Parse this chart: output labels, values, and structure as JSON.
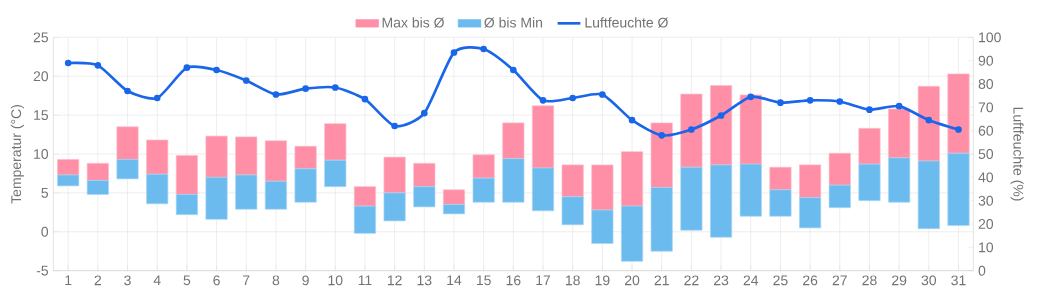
{
  "chart_data": {
    "type": "bar",
    "ylabel": "Temperatur (°C)",
    "y2label": "Luftfeuchte (%)",
    "categories": [
      "1",
      "2",
      "3",
      "4",
      "5",
      "6",
      "7",
      "8",
      "9",
      "10",
      "11",
      "12",
      "13",
      "14",
      "15",
      "16",
      "17",
      "18",
      "19",
      "20",
      "21",
      "22",
      "23",
      "24",
      "25",
      "26",
      "27",
      "28",
      "29",
      "30",
      "31"
    ],
    "series": [
      {
        "name": "Max bis Ø",
        "color": "#fe8fa6",
        "base": [
          7.3,
          6.6,
          9.3,
          7.4,
          4.8,
          7.0,
          7.3,
          6.5,
          8.1,
          9.2,
          3.3,
          5.0,
          5.8,
          3.5,
          6.9,
          9.4,
          8.2,
          4.5,
          2.8,
          3.3,
          5.7,
          8.3,
          8.6,
          8.7,
          5.4,
          4.4,
          6.0,
          8.7,
          9.5,
          9.1,
          10.1
        ],
        "values": [
          2.0,
          2.2,
          4.2,
          4.4,
          5.0,
          5.3,
          4.9,
          5.2,
          2.9,
          4.7,
          2.5,
          4.6,
          3.0,
          1.9,
          3.0,
          4.6,
          8.0,
          4.1,
          5.8,
          7.0,
          8.3,
          9.4,
          10.2,
          8.9,
          2.9,
          4.2,
          4.1,
          4.6,
          6.3,
          9.6,
          10.2
        ]
      },
      {
        "name": "Ø bis Min",
        "color": "#6cbbee",
        "base": [
          5.9,
          4.8,
          6.8,
          3.6,
          2.2,
          1.6,
          2.9,
          2.9,
          3.8,
          5.8,
          -0.2,
          1.4,
          3.2,
          2.3,
          3.8,
          3.8,
          2.7,
          0.9,
          -1.5,
          -3.8,
          -2.5,
          0.2,
          -0.7,
          2.0,
          2.0,
          0.5,
          3.1,
          4.0,
          3.8,
          0.4,
          0.8
        ],
        "values": [
          1.4,
          1.8,
          2.5,
          3.8,
          2.6,
          5.4,
          4.4,
          3.6,
          4.3,
          3.4,
          3.5,
          3.6,
          2.6,
          1.2,
          3.1,
          5.6,
          5.5,
          3.6,
          4.3,
          7.1,
          8.2,
          8.1,
          9.3,
          6.7,
          3.4,
          3.9,
          2.9,
          4.7,
          5.7,
          8.7,
          9.3
        ]
      },
      {
        "name": "Luftfeuchte Ø",
        "type": "line",
        "axis": "y2",
        "color": "#1a66ea",
        "marker": "circle",
        "values": [
          89,
          88,
          77,
          74,
          87,
          86,
          81.5,
          75.5,
          78,
          78.5,
          73.5,
          62,
          67.5,
          93.5,
          95,
          86,
          73,
          74,
          75.5,
          64.5,
          58,
          60.5,
          66.5,
          74.5,
          72,
          73,
          72.5,
          69,
          70.5,
          64.5,
          60.5
        ]
      }
    ],
    "ylim": [
      -5,
      25
    ],
    "yticks": [
      -5,
      0,
      5,
      10,
      15,
      20,
      25
    ],
    "y2lim": [
      0,
      100
    ],
    "y2ticks": [
      0,
      10,
      20,
      30,
      40,
      50,
      60,
      70,
      80,
      90,
      100
    ],
    "grid": true,
    "legend": "top"
  }
}
